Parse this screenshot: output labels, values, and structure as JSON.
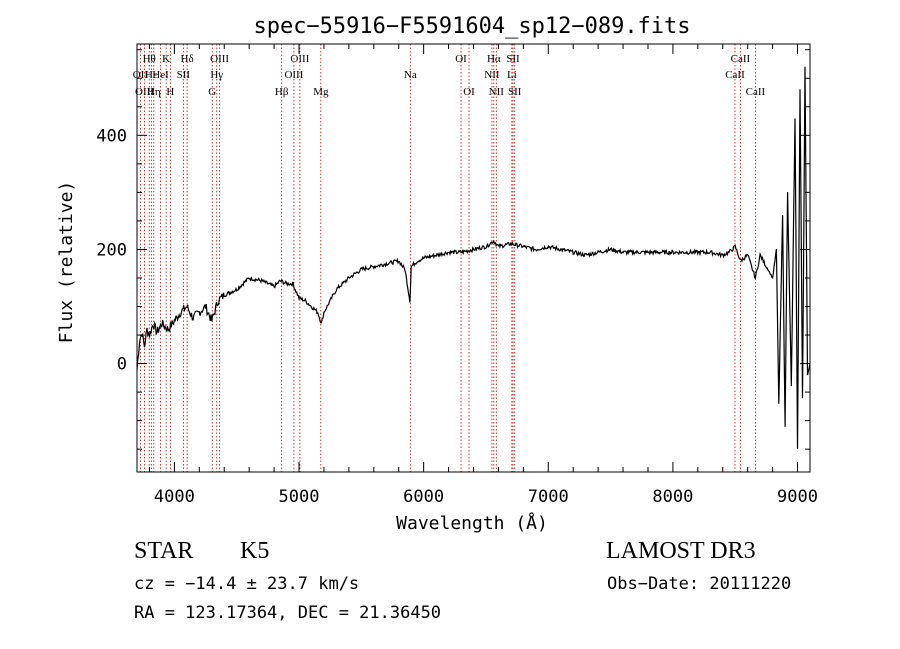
{
  "chart_data": {
    "type": "line",
    "title": "spec−55916−F5591604_sp12−089.fits",
    "xlabel": "Wavelength (Å)",
    "ylabel": "Flux (relative)",
    "xlim": [
      3700,
      9100
    ],
    "ylim": [
      -190,
      560
    ],
    "xticks": [
      4000,
      5000,
      6000,
      7000,
      8000,
      9000
    ],
    "yticks": [
      0,
      200,
      400
    ],
    "grid": false,
    "series": [
      {
        "name": "spectrum",
        "x": [
          3700,
          3720,
          3740,
          3760,
          3780,
          3800,
          3830,
          3860,
          3900,
          3950,
          4000,
          4050,
          4100,
          4150,
          4200,
          4250,
          4300,
          4350,
          4400,
          4500,
          4600,
          4700,
          4800,
          4850,
          4900,
          4950,
          5000,
          5050,
          5100,
          5150,
          5180,
          5200,
          5250,
          5300,
          5400,
          5500,
          5600,
          5700,
          5800,
          5850,
          5890,
          5900,
          5950,
          6000,
          6100,
          6200,
          6300,
          6400,
          6500,
          6562,
          6600,
          6700,
          6800,
          6900,
          7000,
          7100,
          7200,
          7300,
          7400,
          7500,
          7600,
          7700,
          7800,
          7900,
          8000,
          8100,
          8200,
          8300,
          8400,
          8450,
          8500,
          8542,
          8600,
          8662,
          8700,
          8750,
          8800,
          8830,
          8850,
          8880,
          8900,
          8920,
          8950,
          8980,
          9000,
          9020,
          9040,
          9060,
          9080,
          9100
        ],
        "y": [
          -10,
          40,
          55,
          30,
          60,
          50,
          70,
          55,
          70,
          60,
          75,
          90,
          100,
          80,
          90,
          100,
          75,
          110,
          120,
          130,
          150,
          145,
          135,
          145,
          140,
          140,
          115,
          110,
          100,
          90,
          70,
          90,
          110,
          130,
          150,
          165,
          170,
          175,
          180,
          165,
          110,
          170,
          180,
          185,
          190,
          195,
          195,
          200,
          205,
          215,
          205,
          210,
          205,
          200,
          205,
          200,
          195,
          190,
          195,
          200,
          195,
          195,
          195,
          195,
          195,
          195,
          195,
          195,
          190,
          195,
          205,
          180,
          190,
          150,
          190,
          170,
          150,
          200,
          -70,
          260,
          -110,
          300,
          -40,
          430,
          -150,
          480,
          -60,
          520,
          -20,
          0
        ]
      }
    ],
    "lines": [
      {
        "label": "Hθ",
        "x": 3798,
        "row": 1
      },
      {
        "label": "OII",
        "x": 3727,
        "row": 2
      },
      {
        "label": "OIII",
        "x": 3760,
        "row": 3
      },
      {
        "label": "Hε",
        "x": 3815,
        "row": 2
      },
      {
        "label": "Hη",
        "x": 3835,
        "row": 3
      },
      {
        "label": "HeI",
        "x": 3889,
        "row": 2
      },
      {
        "label": "K",
        "x": 3934,
        "row": 1
      },
      {
        "label": "H",
        "x": 3968,
        "row": 3
      },
      {
        "label": "SII",
        "x": 4072,
        "row": 2
      },
      {
        "label": "Hδ",
        "x": 4102,
        "row": 1
      },
      {
        "label": "OIII",
        "x": 4363,
        "row": 1
      },
      {
        "label": "Hγ",
        "x": 4340,
        "row": 2
      },
      {
        "label": "G",
        "x": 4304,
        "row": 3
      },
      {
        "label": "Hβ",
        "x": 4861,
        "row": 3
      },
      {
        "label": "OIII",
        "x": 5007,
        "row": 1
      },
      {
        "label": "OIII",
        "x": 4959,
        "row": 2
      },
      {
        "label": "Mg",
        "x": 5175,
        "row": 3
      },
      {
        "label": "Na",
        "x": 5893,
        "row": 2
      },
      {
        "label": "OI",
        "x": 6300,
        "row": 1
      },
      {
        "label": "OI",
        "x": 6364,
        "row": 3
      },
      {
        "label": "Hα",
        "x": 6563,
        "row": 1
      },
      {
        "label": "NII",
        "x": 6548,
        "row": 2
      },
      {
        "label": "NII",
        "x": 6583,
        "row": 3
      },
      {
        "label": "SII",
        "x": 6717,
        "row": 1
      },
      {
        "label": "Li",
        "x": 6708,
        "row": 2
      },
      {
        "label": "SII",
        "x": 6731,
        "row": 3
      },
      {
        "label": "CaII",
        "x": 8542,
        "row": 1
      },
      {
        "label": "CaII",
        "x": 8498,
        "row": 2
      },
      {
        "label": "CaII",
        "x": 8662,
        "row": 3
      }
    ]
  },
  "info": {
    "object_class": "STAR",
    "subclass": "K5",
    "survey": "LAMOST DR3",
    "redshift": "cz = −14.4 ± 23.7 km/s",
    "obs_date": "Obs−Date: 20111220",
    "coords": "RA = 123.17364, DEC =  21.36450"
  },
  "colors": {
    "line_marker": "#c00000",
    "spectrum": "#000000",
    "axes": "#000000"
  }
}
